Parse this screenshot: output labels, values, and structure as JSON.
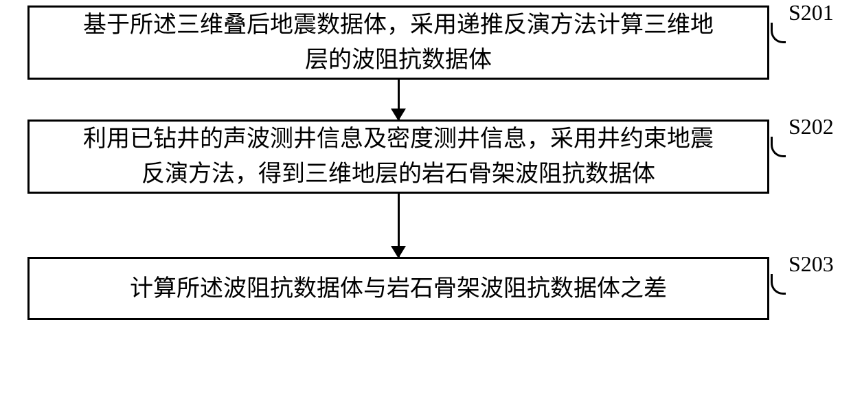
{
  "flowchart": {
    "steps": [
      {
        "text": "基于所述三维叠后地震数据体，采用递推反演方法计算三维地\n层的波阻抗数据体",
        "label": "S201"
      },
      {
        "text": "利用已钻井的声波测井信息及密度测井信息，采用井约束地震\n反演方法，得到三维地层的岩石骨架波阻抗数据体",
        "label": "S202"
      },
      {
        "text": "计算所述波阻抗数据体与岩石骨架波阻抗数据体之差",
        "label": "S203"
      }
    ],
    "style": {
      "box_border_color": "#000000",
      "box_border_width": 3,
      "box_background": "#ffffff",
      "arrow_color": "#000000",
      "arrow_width": 3,
      "font_family": "SimSun",
      "font_size_text": 34,
      "font_size_label": 32,
      "text_color": "#000000"
    }
  }
}
